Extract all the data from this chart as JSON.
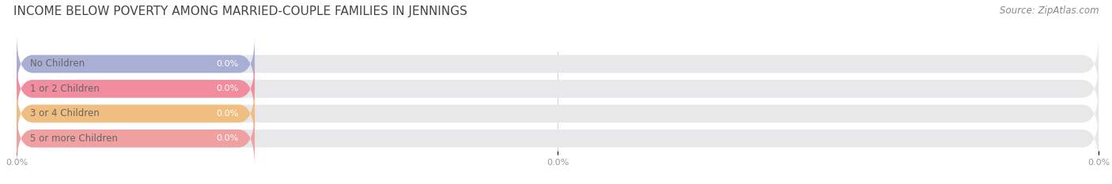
{
  "title": "INCOME BELOW POVERTY AMONG MARRIED-COUPLE FAMILIES IN JENNINGS",
  "source": "Source: ZipAtlas.com",
  "categories": [
    "No Children",
    "1 or 2 Children",
    "3 or 4 Children",
    "5 or more Children"
  ],
  "values": [
    0.0,
    0.0,
    0.0,
    0.0
  ],
  "bar_colors": [
    "#a8aed4",
    "#f28da0",
    "#f0be80",
    "#f0a0a0"
  ],
  "bar_bg_color": "#e8e8ea",
  "value_label_color": "#ffffff",
  "label_color": "#666666",
  "title_color": "#444444",
  "source_color": "#888888",
  "xlim": [
    0,
    100
  ],
  "figsize": [
    14.06,
    2.33
  ],
  "dpi": 100,
  "background_color": "#ffffff",
  "bar_height": 0.72,
  "colored_bar_width": 22,
  "rounding_size": 1.5,
  "title_fontsize": 11,
  "label_fontsize": 8.5,
  "value_fontsize": 8.0,
  "tick_fontsize": 8.0
}
